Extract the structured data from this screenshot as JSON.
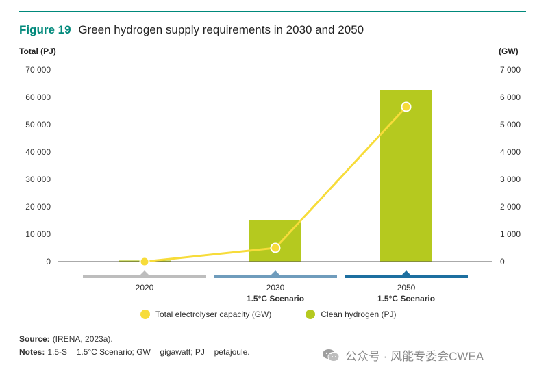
{
  "figure": {
    "label": "Figure 19",
    "title": "Green hydrogen supply requirements in 2030 and 2050"
  },
  "axes": {
    "left_unit": "Total (PJ)",
    "right_unit": "(GW)",
    "left_ticks": [
      "0",
      "10 000",
      "20 000",
      "30 000",
      "40 000",
      "50 000",
      "60 000",
      "70 000"
    ],
    "right_ticks": [
      "0",
      "1 000",
      "2 000",
      "3 000",
      "4 000",
      "5 000",
      "6 000",
      "7 000"
    ]
  },
  "chart_data": {
    "type": "bar",
    "categories": [
      "2020",
      "2030",
      "2050"
    ],
    "category_subtitles": [
      "",
      "1.5°C Scenario",
      "1.5°C Scenario"
    ],
    "series": [
      {
        "name": "Clean hydrogen (PJ)",
        "type": "bar",
        "axis": "left",
        "values": [
          400,
          15000,
          62500
        ],
        "color": "#b5c91f"
      },
      {
        "name": "Total electrolyser capacity (GW)",
        "type": "line",
        "axis": "right",
        "values": [
          0,
          500,
          5650
        ],
        "color": "#f7dc3a"
      }
    ],
    "ylim_left": [
      0,
      70000
    ],
    "ylim_right": [
      0,
      7000
    ],
    "category_band_colors": [
      "#bdbdbd",
      "#6f9cbc",
      "#1d6fa0"
    ],
    "grid": false,
    "legend_position": "bottom"
  },
  "legend": {
    "items": [
      {
        "label": "Total electrolyser capacity (GW)",
        "color": "#f7dc3a"
      },
      {
        "label": "Clean hydrogen (PJ)",
        "color": "#b5c91f"
      }
    ]
  },
  "notes": {
    "source_label": "Source:",
    "source_text": "(IRENA, 2023a).",
    "notes_label": "Notes:",
    "notes_text": "1.5-S = 1.5°C Scenario; GW = gigawatt; PJ = petajoule."
  },
  "watermark": {
    "text": "公众号 · 风能专委会CWEA",
    "icon": "wechat-icon"
  }
}
